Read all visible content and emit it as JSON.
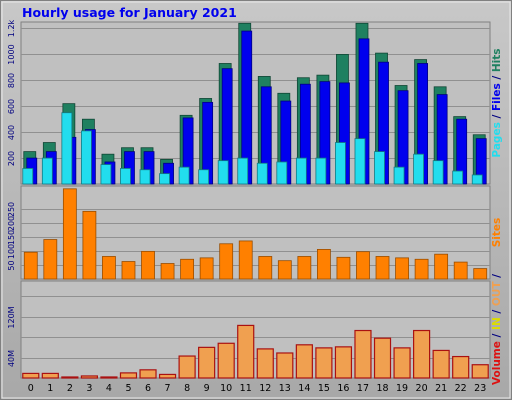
{
  "chart_data": {
    "type": "bar",
    "title": "Hourly usage for January 2021",
    "categories": [
      "0",
      "1",
      "2",
      "3",
      "4",
      "5",
      "6",
      "7",
      "8",
      "9",
      "10",
      "11",
      "12",
      "13",
      "14",
      "15",
      "16",
      "17",
      "18",
      "19",
      "20",
      "21",
      "22",
      "23"
    ],
    "colors": {
      "hits": "#1f8060",
      "files": "#0000ee",
      "pages": "#22ddee",
      "visits": "#ff8000",
      "in": "#dddd00",
      "out": "#ee3300",
      "kbin": "#f0a050",
      "sites": "#ff8000",
      "volume": "#dd1111",
      "panel": "#c0c0c0",
      "border": "#000080",
      "page_bg": "#b0b0b0"
    },
    "panels": [
      {
        "id": "usage",
        "ylim": [
          0,
          1250
        ],
        "y_ticks": [
          200,
          400,
          600,
          800,
          1000,
          1200
        ],
        "y_tick_labels": [
          "200",
          "400",
          "600",
          "800",
          "1000",
          "1.2k"
        ],
        "side_labels": [
          {
            "text": "Pages",
            "color": "#22ddee"
          },
          {
            "text": " / ",
            "color": "#000080"
          },
          {
            "text": "Files",
            "color": "#0000ee"
          },
          {
            "text": " / ",
            "color": "#000080"
          },
          {
            "text": "Hits",
            "color": "#1f8060"
          }
        ],
        "series": [
          {
            "name": "Hits",
            "color": "#1f8060",
            "values": [
              250,
              320,
              620,
              500,
              230,
              280,
              280,
              190,
              530,
              660,
              930,
              1240,
              830,
              700,
              820,
              840,
              1000,
              1240,
              1010,
              760,
              960,
              750,
              520,
              380
            ]
          },
          {
            "name": "Files",
            "color": "#0000ee",
            "values": [
              200,
              250,
              360,
              420,
              170,
              250,
              250,
              160,
              510,
              630,
              890,
              1180,
              750,
              640,
              770,
              790,
              780,
              1120,
              940,
              720,
              930,
              690,
              500,
              350
            ]
          },
          {
            "name": "Pages",
            "color": "#22ddee",
            "values": [
              120,
              200,
              550,
              410,
              150,
              120,
              110,
              80,
              130,
              110,
              180,
              200,
              160,
              170,
              200,
              200,
              320,
              350,
              250,
              130,
              230,
              180,
              100,
              70
            ]
          }
        ]
      },
      {
        "id": "sites",
        "ylim": [
          0,
          330
        ],
        "y_ticks": [
          50,
          100,
          150,
          200,
          250
        ],
        "y_tick_labels": [
          "50",
          "100",
          "150",
          "200",
          "250"
        ],
        "side_labels": [
          {
            "text": "Sites",
            "color": "#ff8000"
          }
        ],
        "series": [
          {
            "name": "Sites",
            "color": "#ff8000",
            "values": [
              95,
              140,
              320,
              240,
              80,
              62,
              98,
              55,
              70,
              75,
              125,
              135,
              80,
              65,
              80,
              105,
              77,
              97,
              80,
              75,
              70,
              88,
              60,
              37
            ]
          }
        ]
      },
      {
        "id": "volume",
        "ylim": [
          0,
          190
        ],
        "y_ticks": [
          40,
          80,
          120,
          160
        ],
        "y_tick_labels": [
          "40M",
          "",
          "120M",
          ""
        ],
        "side_labels": [
          {
            "text": "Volume",
            "color": "#dd1111"
          },
          {
            "text": " / ",
            "color": "#000080"
          },
          {
            "text": "IN",
            "color": "#dddd00"
          },
          {
            "text": " / ",
            "color": "#000080"
          },
          {
            "text": "OUT",
            "color": "#f0a050"
          },
          {
            "text": " / ",
            "color": "#000080"
          }
        ],
        "series": [
          {
            "name": "Volume",
            "color": "#f0a050",
            "values": [
              9,
              9,
              2,
              4,
              2,
              10,
              16,
              7,
              43,
              60,
              68,
              103,
              57,
              49,
              65,
              59,
              61,
              93,
              78,
              59,
              93,
              54,
              42,
              26
            ]
          }
        ]
      }
    ]
  }
}
